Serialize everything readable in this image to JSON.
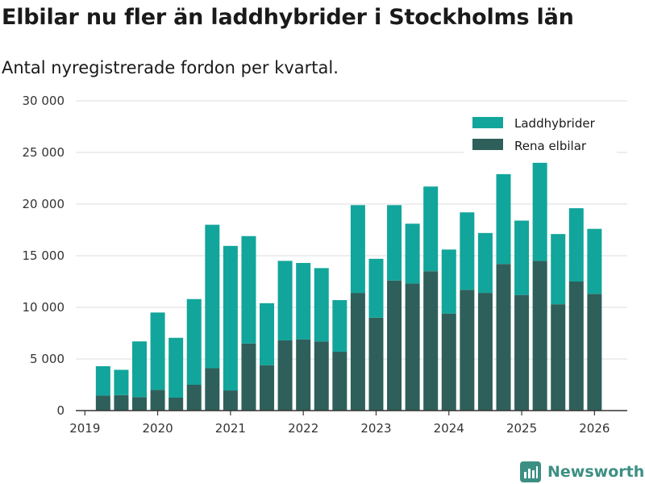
{
  "header": {
    "title": "Elbilar nu fler än laddhybrider i Stockholms län",
    "subtitle": "Antal nyregistrerade fordon per kvartal."
  },
  "brand": {
    "name": "Newsworthy",
    "icon": "newsworthy-logo-icon"
  },
  "colors": {
    "phev": "#12a59b",
    "bev": "#2f5f5a",
    "grid": "#dddddd",
    "axis": "#333333",
    "brand": "#3d8f84"
  },
  "chart_data": {
    "type": "bar",
    "stacked": true,
    "title": "Elbilar nu fler än laddhybrider i Stockholms län",
    "subtitle": "Antal nyregistrerade fordon per kvartal.",
    "xlabel": "",
    "ylabel": "",
    "ylim": [
      0,
      30000
    ],
    "xlim": [
      2018.875,
      2026.45
    ],
    "grid": true,
    "legend_position": "top-right",
    "y_ticks": [
      {
        "value": 0,
        "label": "0"
      },
      {
        "value": 5000,
        "label": "5 000"
      },
      {
        "value": 10000,
        "label": "10 000"
      },
      {
        "value": 15000,
        "label": "15 000"
      },
      {
        "value": 20000,
        "label": "20 000"
      },
      {
        "value": 25000,
        "label": "25 000"
      },
      {
        "value": 30000,
        "label": "30 000"
      }
    ],
    "x_ticks": [
      {
        "value": 2019,
        "label": "2019"
      },
      {
        "value": 2020,
        "label": "2020"
      },
      {
        "value": 2021,
        "label": "2021"
      },
      {
        "value": 2022,
        "label": "2022"
      },
      {
        "value": 2023,
        "label": "2023"
      },
      {
        "value": 2024,
        "label": "2024"
      },
      {
        "value": 2025,
        "label": "2025"
      },
      {
        "value": 2026,
        "label": "2026"
      }
    ],
    "x": [
      2019.25,
      2019.5,
      2019.75,
      2020.0,
      2020.25,
      2020.5,
      2020.75,
      2021.0,
      2021.25,
      2021.5,
      2021.75,
      2022.0,
      2022.25,
      2022.5,
      2022.75,
      2023.0,
      2023.25,
      2023.5,
      2023.75,
      2024.0,
      2024.25,
      2024.5,
      2024.75,
      2025.0,
      2025.25,
      2025.5,
      2025.75,
      2026.0
    ],
    "series": [
      {
        "name": "Rena elbilar",
        "color": "#2f5f5a",
        "values": [
          1450,
          1500,
          1300,
          2000,
          1250,
          2500,
          4100,
          1950,
          6500,
          4400,
          6800,
          6900,
          6700,
          5700,
          11400,
          9000,
          12600,
          12300,
          13500,
          9400,
          11700,
          11400,
          14200,
          11200,
          14500,
          10300,
          12500,
          11300
        ]
      },
      {
        "name": "Laddhybrider",
        "color": "#12a59b",
        "values": [
          2850,
          2450,
          5400,
          7500,
          5800,
          8300,
          13900,
          14000,
          10400,
          6000,
          7700,
          7400,
          7100,
          5000,
          8500,
          5700,
          7300,
          5800,
          8200,
          6200,
          7500,
          5800,
          8700,
          7200,
          9500,
          6800,
          7100,
          6300
        ]
      }
    ],
    "legend": [
      {
        "label": "Laddhybrider",
        "color": "#12a59b"
      },
      {
        "label": "Rena elbilar",
        "color": "#2f5f5a"
      }
    ]
  }
}
